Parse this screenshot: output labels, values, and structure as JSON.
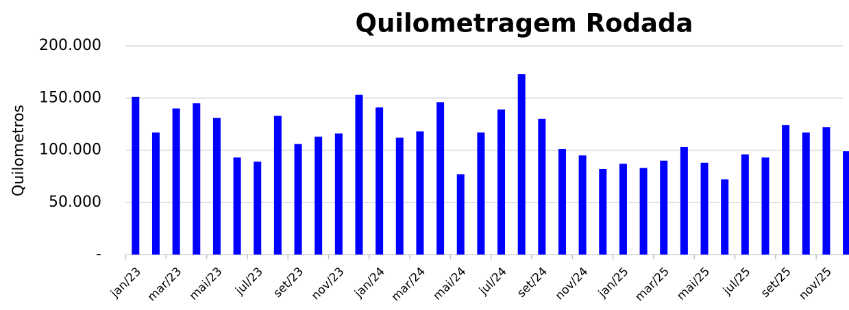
{
  "chart_data": {
    "type": "bar",
    "title": "Quilometragem Rodada",
    "y_label": "Quilometros",
    "categories": [
      "jan/23",
      null,
      "mar/23",
      null,
      "mai/23",
      null,
      "jul/23",
      null,
      "set/23",
      null,
      "nov/23",
      null,
      "jan/24",
      null,
      "mar/24",
      null,
      "mai/24",
      null,
      "jul/24",
      null,
      "set/24",
      null,
      "nov/24",
      null,
      "jan/25",
      null,
      "mar/25",
      null,
      "mai/25",
      null,
      "jul/25",
      null,
      "set/25",
      null,
      "nov/25",
      null
    ],
    "values": [
      151000,
      117000,
      140000,
      145000,
      131000,
      93000,
      89000,
      133000,
      106000,
      113000,
      116000,
      153000,
      141000,
      112000,
      118000,
      146000,
      77000,
      117000,
      139000,
      173000,
      130000,
      101000,
      95000,
      82000,
      87000,
      83000,
      90000,
      103000,
      88000,
      72000,
      96000,
      93000,
      124000,
      117000,
      122000,
      99000
    ],
    "color": "#0000ff",
    "ylim": [
      0,
      200000
    ],
    "yticks": [
      {
        "value": 0,
        "label": "-"
      },
      {
        "value": 50000,
        "label": "50.000"
      },
      {
        "value": 100000,
        "label": "100.000"
      },
      {
        "value": 150000,
        "label": "150.000"
      },
      {
        "value": 200000,
        "label": "200.000"
      }
    ],
    "grid": true
  }
}
